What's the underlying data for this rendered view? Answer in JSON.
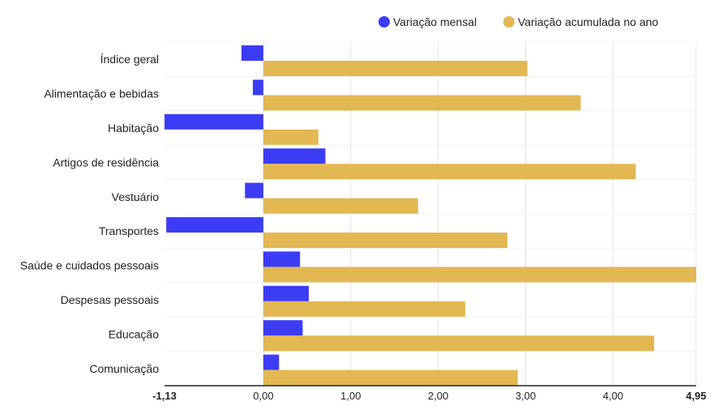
{
  "chart_data": {
    "type": "bar",
    "orientation": "horizontal",
    "categories": [
      "Índice geral",
      "Alimentação e bebidas",
      "Habitação",
      "Artigos de residência",
      "Vestuário",
      "Transportes",
      "Saúde e cuidados pessoais",
      "Despesas pessoais",
      "Educação",
      "Comunicação"
    ],
    "series": [
      {
        "name": "Variação mensal",
        "color": "#3c3cf5",
        "values": [
          -0.25,
          -0.12,
          -1.13,
          0.71,
          -0.21,
          -1.11,
          0.42,
          0.52,
          0.45,
          0.18
        ]
      },
      {
        "name": "Variação acumulada no ano",
        "color": "#e3b852",
        "values": [
          3.02,
          3.63,
          0.63,
          4.26,
          1.77,
          2.79,
          4.95,
          2.31,
          4.47,
          2.91
        ]
      }
    ],
    "xlim": [
      -1.13,
      4.95
    ],
    "x_ticks": [
      "-1,13",
      "0,00",
      "1,00",
      "2,00",
      "3,00",
      "4,00",
      "4,95"
    ],
    "x_tick_values": [
      -1.13,
      0,
      1,
      2,
      3,
      4,
      4.95
    ],
    "bold_ticks": [
      "-1,13",
      "4,95"
    ],
    "grid": "vertical",
    "legend_position": "top-right",
    "title": "",
    "xlabel": "",
    "ylabel": ""
  }
}
